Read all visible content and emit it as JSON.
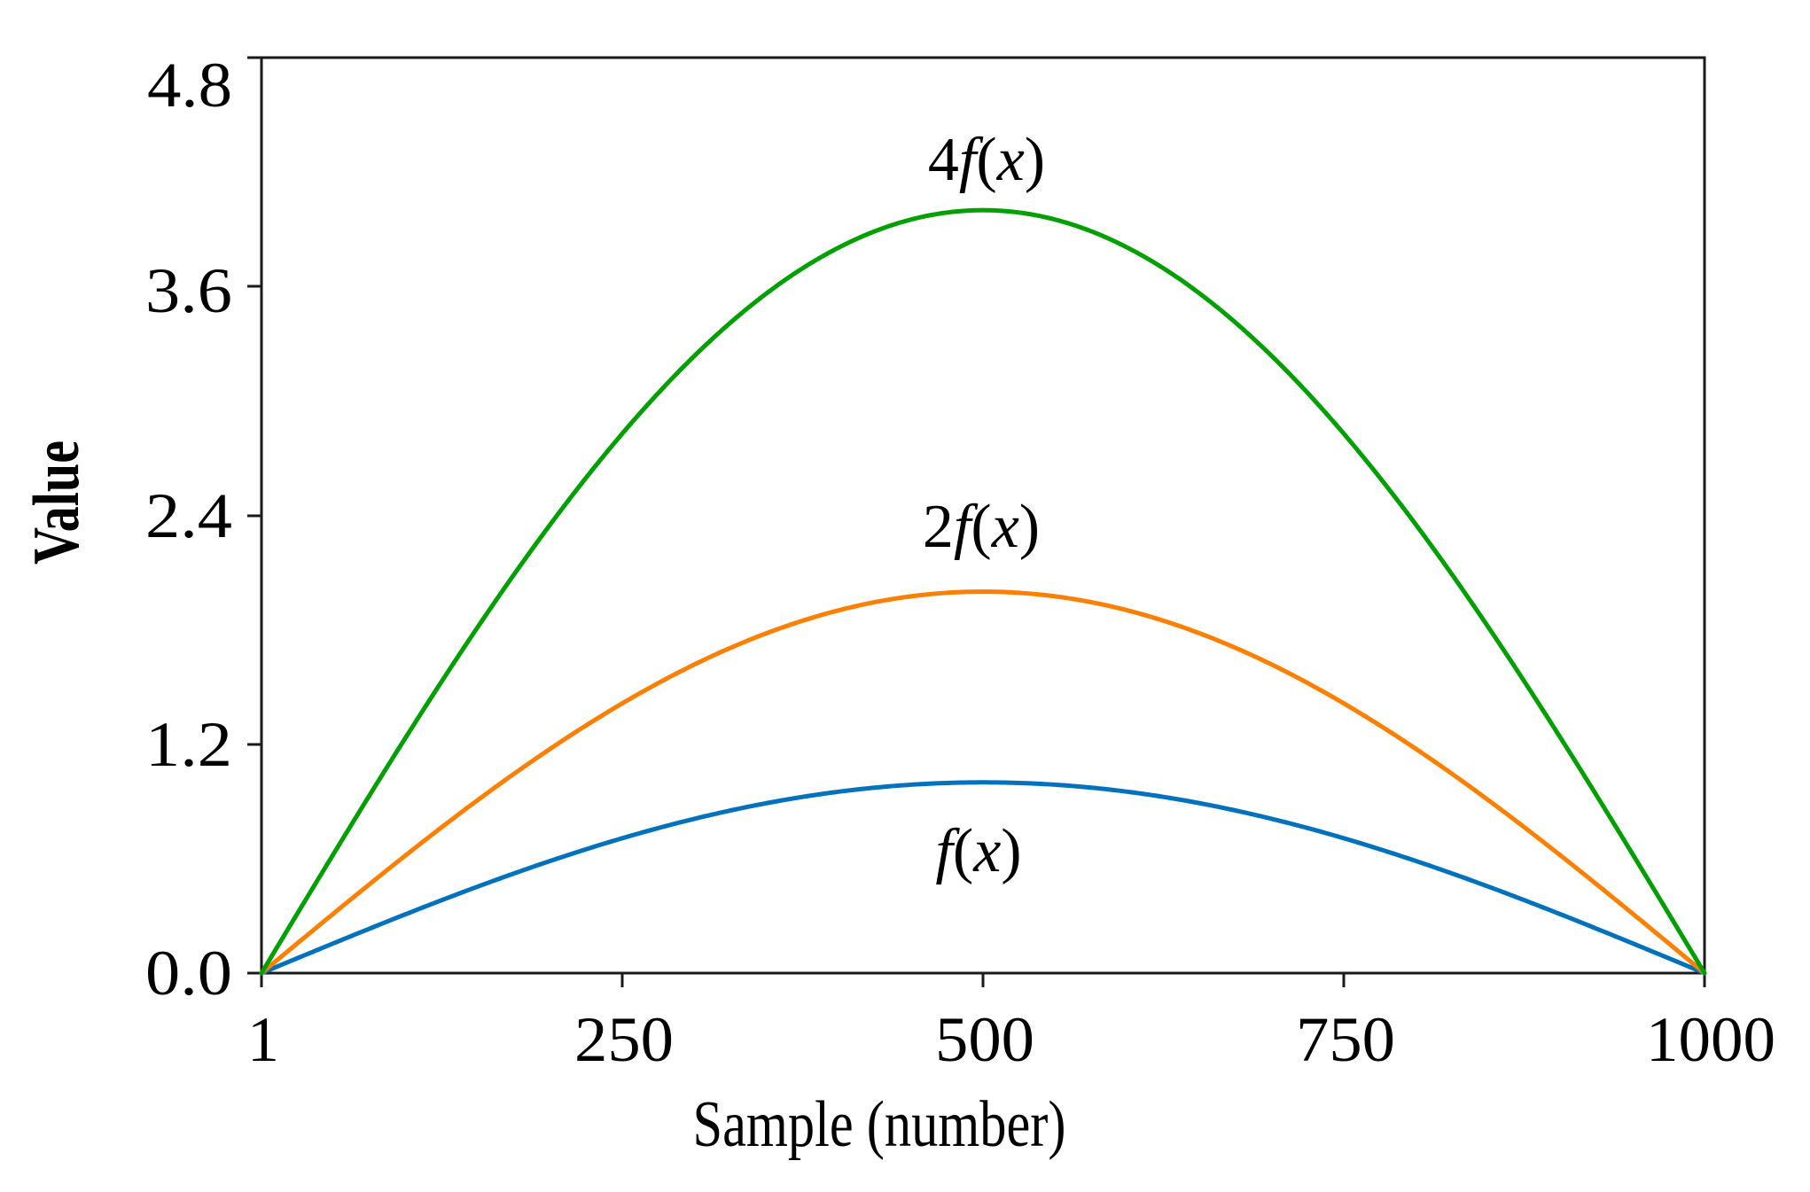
{
  "chart_data": {
    "type": "line",
    "title": "",
    "xlabel": "Sample (number)",
    "ylabel": "Value",
    "xlim": [
      1,
      1000
    ],
    "ylim": [
      0,
      4.8
    ],
    "grid": false,
    "legend": "none (inline curve annotations)",
    "x_ticks": [
      1,
      250,
      500,
      750,
      1000
    ],
    "x_tick_labels": [
      "1",
      "250",
      "500",
      "750",
      "1000"
    ],
    "y_ticks": [
      0.0,
      1.2,
      2.4,
      3.6,
      4.8
    ],
    "y_tick_labels": [
      "0.0",
      "1.2",
      "2.4",
      "3.6",
      "4.8"
    ],
    "x": [
      1,
      125,
      250,
      375,
      500,
      625,
      750,
      875,
      1000
    ],
    "series": [
      {
        "name": "f(x)",
        "color": "#0072BD",
        "values": [
          0.0,
          0.38,
          0.71,
          0.92,
          1.0,
          0.92,
          0.71,
          0.38,
          0.0
        ]
      },
      {
        "name": "2f(x)",
        "color": "#FF8000",
        "values": [
          0.0,
          0.77,
          1.41,
          1.85,
          2.0,
          1.85,
          1.41,
          0.77,
          0.0
        ]
      },
      {
        "name": "4f(x)",
        "color": "#00A000",
        "values": [
          0.0,
          1.53,
          2.83,
          3.7,
          4.0,
          3.7,
          2.83,
          1.53,
          0.0
        ]
      }
    ],
    "annotations": [
      {
        "text_prefix": "4",
        "text": "f(x)",
        "x": 500,
        "y": 4.4,
        "series": "4f(x)"
      },
      {
        "text_prefix": "2",
        "text": "f(x)",
        "x": 500,
        "y": 2.4,
        "series": "2f(x)"
      },
      {
        "text_prefix": "",
        "text": "f(x)",
        "x": 500,
        "y": 0.6,
        "series": "f(x)"
      }
    ],
    "curve_shape": "half-sine: k * sin(pi * (x - 1) / 999), k = 1, 2, 4"
  },
  "labels": {
    "xlabel": "Sample (number)",
    "ylabel": "Value",
    "xticks": [
      "1",
      "250",
      "500",
      "750",
      "1000"
    ],
    "yticks": [
      "0.0",
      "1.2",
      "2.4",
      "3.6",
      "4.8"
    ],
    "ann_4_prefix": "4",
    "ann_2_prefix": "2",
    "ann_f": "f",
    "ann_open": "(",
    "ann_x": "x",
    "ann_close": ")"
  }
}
